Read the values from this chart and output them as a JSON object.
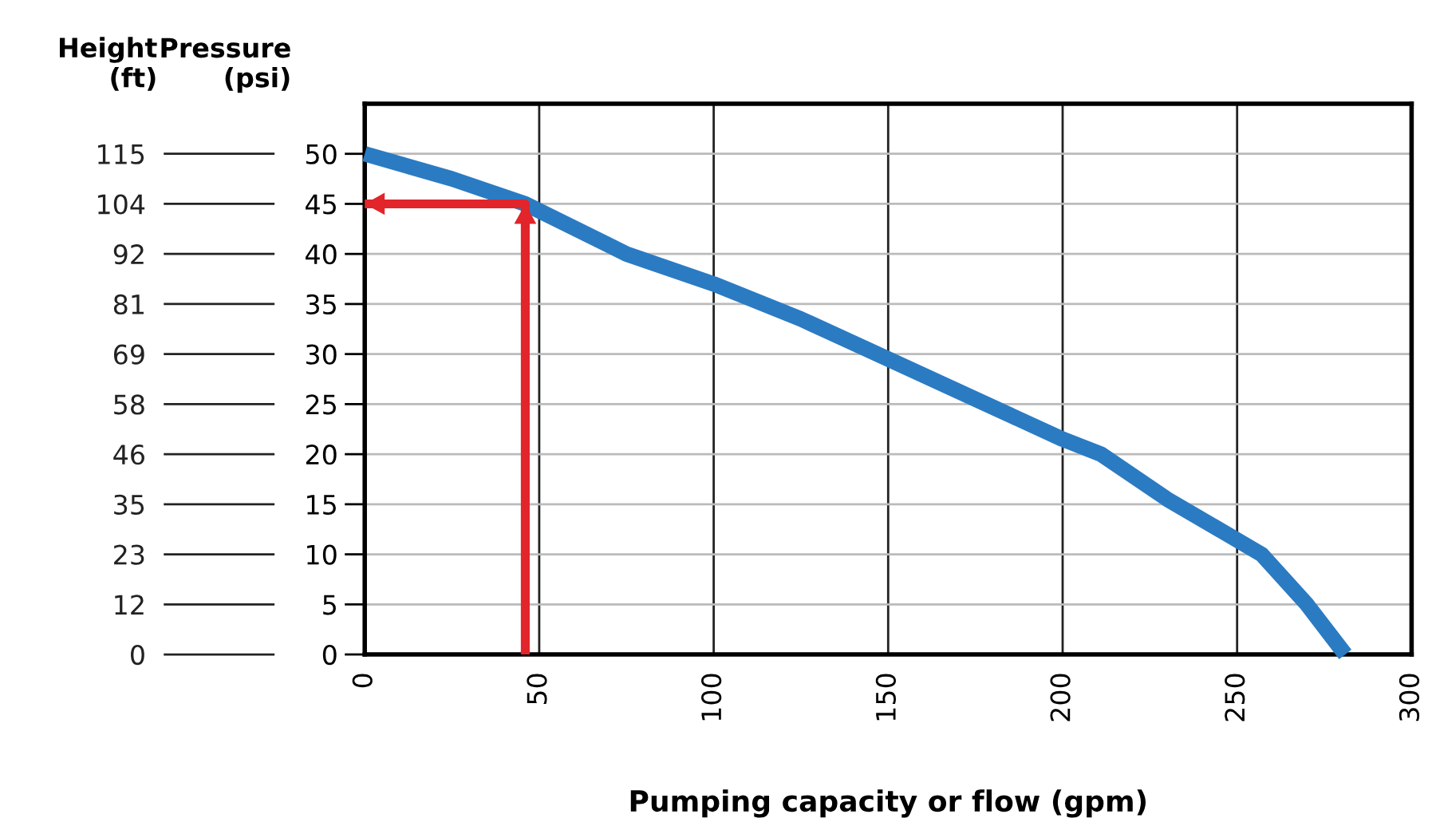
{
  "chart_data": {
    "type": "line",
    "xlabel": "Pumping capacity or flow (gpm)",
    "ylabel": "Pressure\n(psi)",
    "y2label": "Height\n(ft)",
    "xlim": [
      0,
      300
    ],
    "xticks": [
      0,
      50,
      100,
      150,
      200,
      250,
      300
    ],
    "ylim": [
      0,
      55
    ],
    "yticks": [
      {
        "value": 0,
        "label": "0"
      },
      {
        "value": 5,
        "label": "5"
      },
      {
        "value": 10,
        "label": "10"
      },
      {
        "value": 15,
        "label": "15"
      },
      {
        "value": 20,
        "label": "20"
      },
      {
        "value": 25,
        "label": "25"
      },
      {
        "value": 30,
        "label": "30"
      },
      {
        "value": 35,
        "label": "35"
      },
      {
        "value": 40,
        "label": "40"
      },
      {
        "value": 45,
        "label": "45"
      },
      {
        "value": 50,
        "label": "50"
      }
    ],
    "y2lim": [
      0,
      126.5
    ],
    "y2ticks": [
      {
        "value": 0,
        "label": "0"
      },
      {
        "value": 11.5,
        "label": "12"
      },
      {
        "value": 23,
        "label": "23"
      },
      {
        "value": 34.5,
        "label": "35"
      },
      {
        "value": 46,
        "label": "46"
      },
      {
        "value": 57.5,
        "label": "58"
      },
      {
        "value": 69,
        "label": "69"
      },
      {
        "value": 80.5,
        "label": "81"
      },
      {
        "value": 92,
        "label": "92"
      },
      {
        "value": 103.5,
        "label": "104"
      },
      {
        "value": 115,
        "label": "115"
      }
    ],
    "grid": true,
    "legend": false,
    "series": [
      {
        "color": "#2b7bc3",
        "x": [
          0,
          25,
          46,
          75,
          100,
          125,
          150,
          175,
          200,
          211,
          230,
          257,
          270,
          281
        ],
        "values": [
          50,
          47.5,
          45,
          40,
          37,
          33.5,
          29.5,
          25.5,
          21.5,
          20,
          15.5,
          10,
          5,
          0
        ]
      },
      {
        "color": "#e2242b",
        "x": [
          46,
          46,
          0
        ],
        "values": [
          0,
          45,
          45
        ]
      }
    ]
  }
}
